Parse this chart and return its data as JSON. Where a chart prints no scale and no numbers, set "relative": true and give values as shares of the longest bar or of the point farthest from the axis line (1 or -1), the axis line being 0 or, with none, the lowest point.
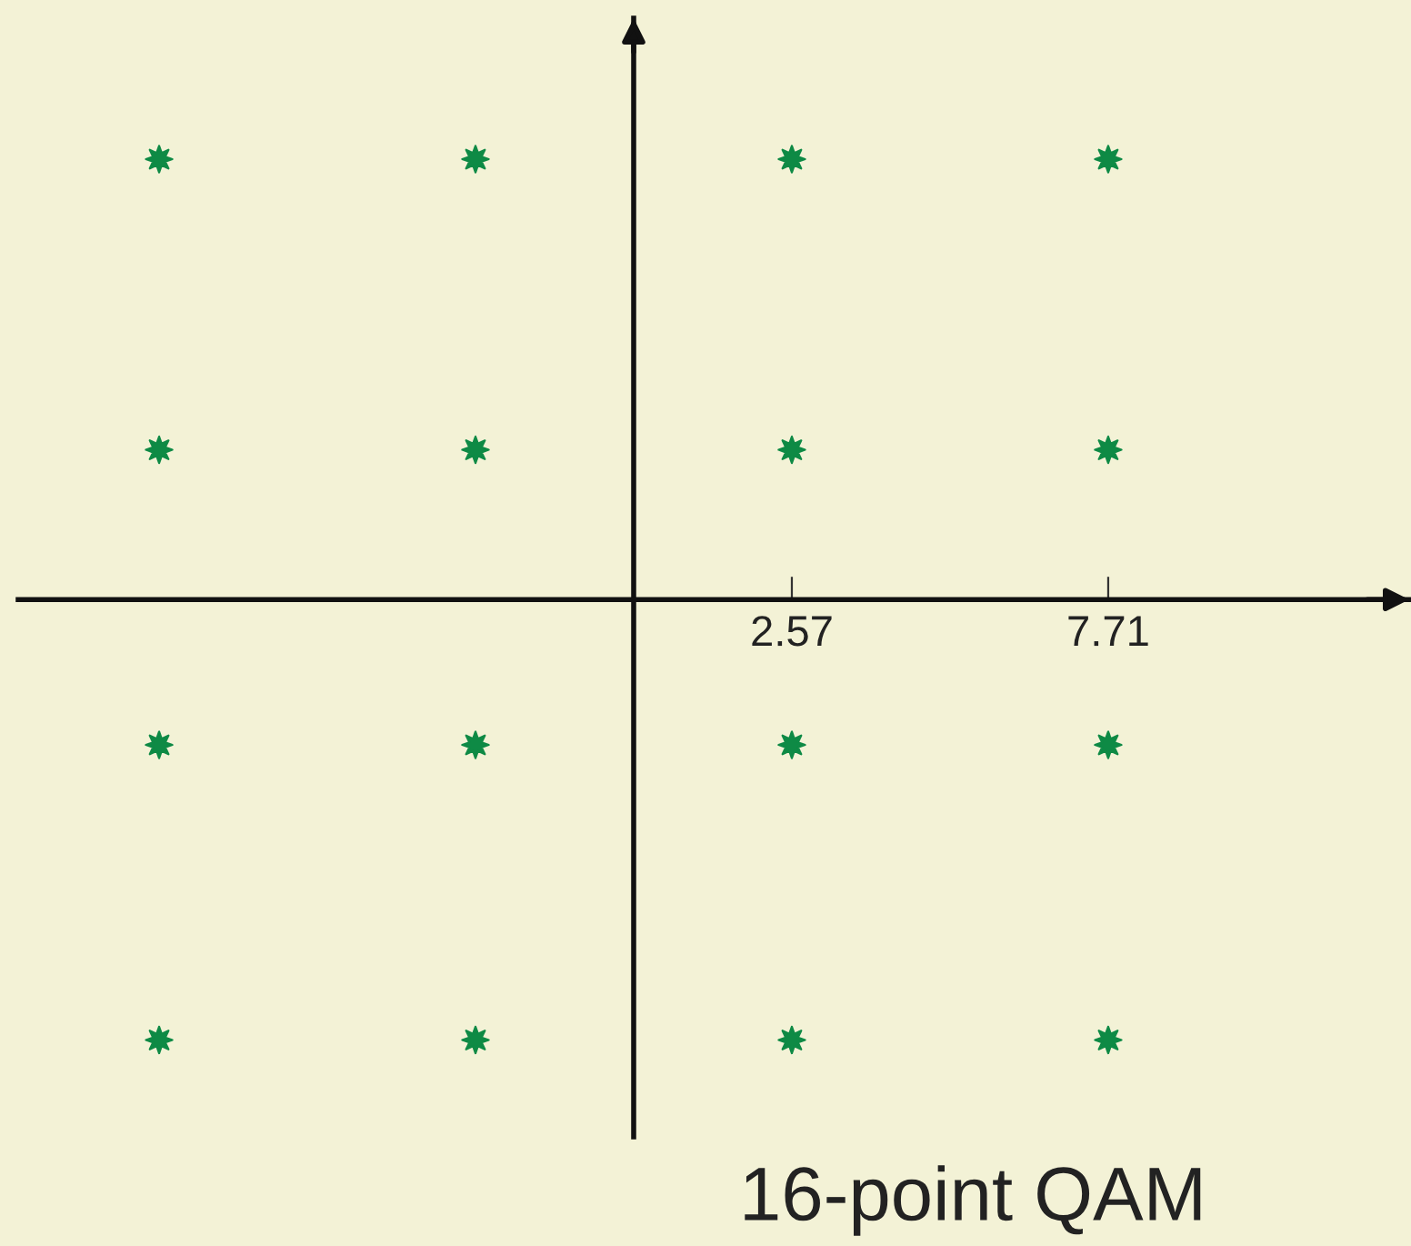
{
  "chart_data": {
    "type": "scatter",
    "title": "16-point QAM",
    "relative": true,
    "x": [
      -7.71,
      -2.57,
      2.57,
      7.71,
      -7.71,
      -2.57,
      2.57,
      7.71,
      -7.71,
      -2.57,
      2.57,
      7.71,
      -7.71,
      -2.57,
      2.57,
      7.71
    ],
    "values": [
      1,
      1,
      1,
      1,
      0.34,
      0.34,
      0.34,
      0.34,
      -0.33,
      -0.33,
      -0.33,
      -0.33,
      -1,
      -1,
      -1,
      -1
    ],
    "color": "#0e8a45",
    "marker": "star",
    "xlim": [
      -10,
      12.6
    ],
    "xticks": [
      2.57,
      7.71
    ],
    "tick_labels": "x"
  }
}
